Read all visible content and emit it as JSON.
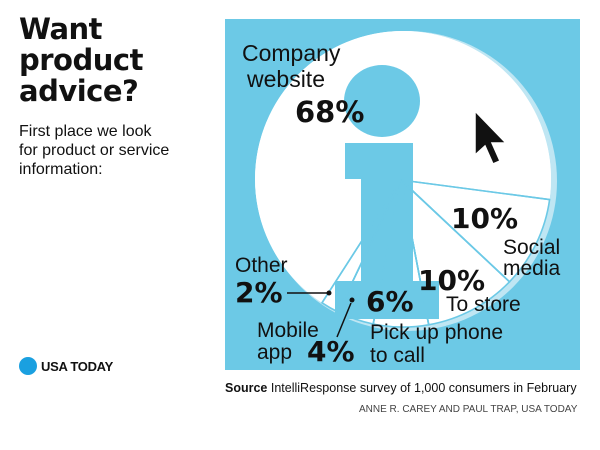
{
  "header": {
    "title_lines": [
      "Want",
      "product",
      "advice?"
    ],
    "subtitle_lines": [
      "First place we look",
      "for product or service",
      "information:"
    ]
  },
  "brand": {
    "name": "USA TODAY",
    "dot_color": "#1aa0e0",
    "icon": "usa-today-circle-logo"
  },
  "footer": {
    "source_label": "Source",
    "source_text": "IntelliResponse survey of 1,000 consumers in February",
    "credit": "ANNE R. CAREY AND PAUL TRAP, USA TODAY"
  },
  "chart_data": {
    "type": "pie",
    "title": "",
    "background": "#6cc9e6",
    "slice_color": "#ffffff",
    "line_color": "#6cc9e6",
    "icon": "info-i-icon, mouse-cursor-icon",
    "slices": [
      {
        "label": "Company website",
        "label_lines": [
          "Company",
          "website"
        ],
        "value": 68,
        "value_label": "68%"
      },
      {
        "label": "Social media",
        "label_lines": [
          "Social",
          "media"
        ],
        "value": 10,
        "value_label": "10%"
      },
      {
        "label": "To store",
        "label_lines": [
          "To store"
        ],
        "value": 10,
        "value_label": "10%"
      },
      {
        "label": "Pick up phone to call",
        "label_lines": [
          "Pick up phone",
          "to call"
        ],
        "value": 6,
        "value_label": "6%"
      },
      {
        "label": "Mobile app",
        "label_lines": [
          "Mobile",
          "app"
        ],
        "value": 4,
        "value_label": "4%"
      },
      {
        "label": "Other",
        "label_lines": [
          "Other"
        ],
        "value": 2,
        "value_label": "2%"
      }
    ]
  }
}
